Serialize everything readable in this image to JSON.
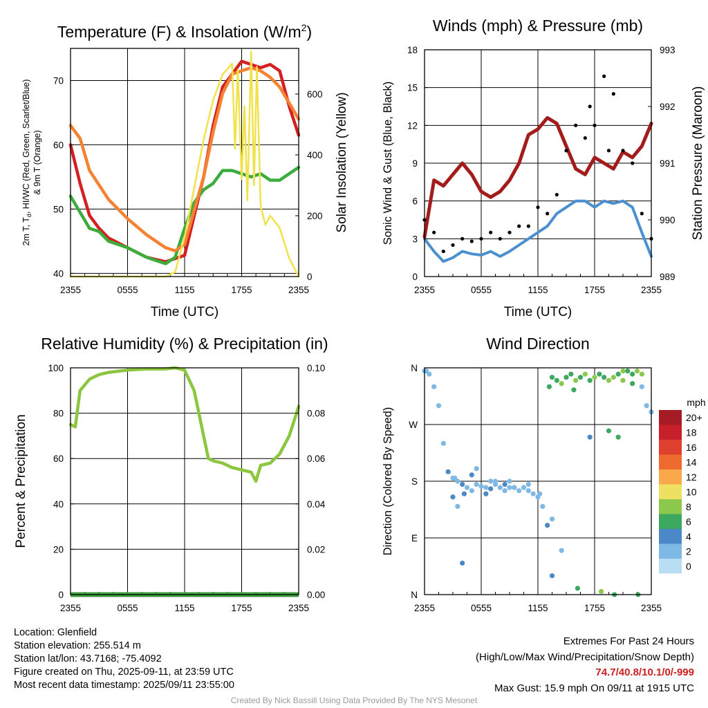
{
  "chart_data": [
    {
      "type": "line",
      "title": "Temperature (F) & Insolation (W/m",
      "title_sup": "2",
      "title_end": ")",
      "xlabel": "Time (UTC)",
      "ylabel_lines": [
        "2m T, T",
        "d",
        ", HI/WC (Red, Green, Scarlet/Blue)",
        "& 9m T (Orange)"
      ],
      "y2label": "Solar Insolation (Yellow)",
      "x_ticks": [
        "2355",
        "0555",
        "1155",
        "1755",
        "2355"
      ],
      "ylim": [
        39.5,
        75
      ],
      "y_ticks": [
        40,
        50,
        60,
        70
      ],
      "y2lim": [
        0,
        750
      ],
      "y2_ticks": [
        0,
        200,
        400,
        600
      ],
      "grid": true,
      "series": [
        {
          "name": "2m T",
          "color": "#d42020",
          "axis": "left",
          "x": [
            0,
            1,
            2,
            3,
            4,
            6,
            8,
            10,
            12,
            14,
            15,
            16,
            18,
            20,
            21,
            22,
            23,
            24
          ],
          "y": [
            60,
            54,
            49,
            47,
            45.5,
            44,
            42.5,
            41.8,
            42.8,
            55,
            63,
            69,
            73,
            72,
            72.5,
            71.5,
            66,
            61.5
          ]
        },
        {
          "name": "Td",
          "color": "#3cac3c",
          "axis": "left",
          "x": [
            0,
            1,
            2,
            3,
            4,
            6,
            8,
            10,
            11,
            12,
            13,
            14,
            15,
            16,
            17,
            18,
            19,
            20,
            21,
            22,
            23,
            24
          ],
          "y": [
            52,
            49.5,
            47,
            46.5,
            45,
            44,
            42.5,
            41.5,
            42.5,
            47,
            51,
            53,
            54,
            56,
            56,
            55.5,
            55,
            55.5,
            54.5,
            54.5,
            55.5,
            56.5
          ]
        },
        {
          "name": "9m T",
          "color": "#f58232",
          "axis": "left",
          "x": [
            0,
            1,
            2,
            4,
            6,
            8,
            10,
            11,
            12,
            14,
            15,
            16,
            17,
            18,
            19,
            20,
            21,
            22,
            23,
            24
          ],
          "y": [
            63,
            61,
            56,
            51.5,
            48.5,
            46,
            44,
            43.5,
            44.5,
            55,
            62,
            68,
            71,
            71.5,
            72,
            71.5,
            70.5,
            69,
            66.5,
            64
          ]
        },
        {
          "name": "Solar Insolation",
          "color": "#f2e24a",
          "axis": "right",
          "x": [
            0,
            10,
            11,
            12,
            13,
            14,
            15,
            16,
            17,
            17.3,
            17.6,
            18,
            18.3,
            18.6,
            19,
            19.3,
            19.6,
            20,
            20.5,
            21,
            22,
            23,
            24
          ],
          "y": [
            0,
            0,
            15,
            130,
            290,
            450,
            580,
            665,
            700,
            420,
            680,
            320,
            560,
            250,
            740,
            300,
            690,
            230,
            170,
            200,
            160,
            60,
            0
          ]
        }
      ]
    },
    {
      "type": "line",
      "title": "Winds (mph) & Pressure (mb)",
      "xlabel": "Time (UTC)",
      "ylabel": "Sonic Wind & Gust (Blue, Black)",
      "y2label": "Station Pressure (Maroon)",
      "x_ticks": [
        "2355",
        "0555",
        "1155",
        "1755",
        "2355"
      ],
      "ylim": [
        0,
        18
      ],
      "y_ticks": [
        0,
        3,
        6,
        9,
        12,
        15,
        18
      ],
      "y2lim": [
        989,
        993
      ],
      "y2_ticks": [
        989,
        990,
        991,
        992,
        993
      ],
      "grid": true,
      "series": [
        {
          "name": "Sonic Wind",
          "color": "#4a90d0",
          "axis": "left",
          "x": [
            0,
            1,
            2,
            3,
            4,
            5,
            6,
            7,
            8,
            9,
            10,
            11,
            12,
            13,
            14,
            15,
            16,
            17,
            18,
            19,
            20,
            21,
            22,
            23,
            24
          ],
          "y": [
            3,
            2,
            1.2,
            1.5,
            2,
            1.8,
            1.7,
            2,
            1.6,
            2,
            2.5,
            3,
            3.5,
            4,
            5,
            5.5,
            6,
            6,
            5.5,
            6,
            5.8,
            6,
            5.5,
            3.5,
            1.6
          ]
        },
        {
          "name": "Gust",
          "color": "#000000",
          "axis": "left",
          "x": [
            0,
            1,
            2,
            3,
            4,
            5,
            6,
            7,
            8,
            9,
            10,
            11,
            12,
            13,
            14,
            15,
            16,
            17,
            17.5,
            18,
            19,
            19.5,
            20,
            21,
            22,
            23,
            24
          ],
          "y": [
            4.5,
            3.5,
            2,
            2.5,
            3,
            2.8,
            3,
            3.5,
            3,
            3.5,
            4,
            4,
            5.5,
            5,
            6.5,
            10,
            12,
            11,
            13.5,
            12,
            15.9,
            10,
            14.5,
            10,
            9,
            5,
            3
          ]
        },
        {
          "name": "Station Pressure",
          "color": "#a31b1b",
          "axis": "right",
          "x": [
            0,
            1,
            2,
            3,
            4,
            5,
            6,
            7,
            8,
            9,
            10,
            11,
            12,
            13,
            14,
            15,
            16,
            17,
            18,
            19,
            20,
            21,
            22,
            23,
            24
          ],
          "y": [
            989.7,
            990.7,
            990.6,
            990.8,
            991.0,
            990.8,
            990.5,
            990.4,
            990.5,
            990.7,
            991.0,
            991.5,
            991.6,
            991.8,
            991.7,
            991.3,
            990.9,
            990.8,
            991.1,
            991.0,
            990.9,
            991.2,
            991.1,
            991.3,
            991.7
          ]
        }
      ]
    },
    {
      "type": "line",
      "title": "Relative Humidity (%) & Precipitation (in)",
      "ylabel": "Percent & Precipitation",
      "x_ticks": [
        "2355",
        "0555",
        "1155",
        "1755",
        "2355"
      ],
      "ylim": [
        0,
        100
      ],
      "y_ticks": [
        0,
        20,
        40,
        60,
        80,
        100
      ],
      "y2lim": [
        0,
        0.1
      ],
      "y2_ticks": [
        "0.00",
        "0.02",
        "0.04",
        "0.06",
        "0.08",
        "0.10"
      ],
      "grid": true,
      "series": [
        {
          "name": "Relative Humidity",
          "color": "#8cc63f",
          "axis": "left",
          "x": [
            0,
            0.5,
            1,
            2,
            3,
            4,
            5,
            6,
            8,
            10,
            11,
            12,
            13,
            14,
            14.5,
            15,
            16,
            17,
            18,
            19,
            19.5,
            20,
            21,
            22,
            23,
            24
          ],
          "y": [
            75,
            74,
            90,
            95,
            97,
            98,
            98.5,
            99,
            99.5,
            99.5,
            100,
            99,
            90,
            70,
            60,
            59,
            58,
            56,
            55,
            54,
            50,
            57,
            58,
            62,
            70,
            83
          ]
        },
        {
          "name": "Precipitation",
          "color": "#3c9e3c",
          "axis": "right",
          "x": [
            0,
            24
          ],
          "y": [
            0,
            0
          ]
        }
      ]
    },
    {
      "type": "scatter",
      "title": "Wind Direction",
      "ylabel": "Direction (Colored By Speed)",
      "x_ticks": [
        "2355",
        "0555",
        "1155",
        "1755",
        "2355"
      ],
      "y_ticks": [
        "N",
        "E",
        "S",
        "W",
        "N"
      ],
      "ylim": [
        0,
        360
      ],
      "legend_title": "mph",
      "legend_labels": [
        "20+",
        "18",
        "16",
        "14",
        "12",
        "10",
        "8",
        "6",
        "4",
        "2",
        "0"
      ],
      "legend_colors": [
        "#a51c24",
        "#c8202a",
        "#e04030",
        "#ee6a2e",
        "#f8a84a",
        "#eee060",
        "#8cc84c",
        "#3ca860",
        "#4a88c8",
        "#7eb8e4",
        "#b8def4"
      ],
      "series": [
        {
          "name": "direction",
          "x": [
            0,
            0.5,
            1,
            1.5,
            2,
            2.5,
            3,
            3.5,
            4,
            4.5,
            5,
            5.5,
            6,
            6.5,
            7,
            7.5,
            8,
            8.5,
            9,
            9.5,
            10,
            10.5,
            11,
            11.5,
            12,
            12.5,
            13,
            13.2,
            13.5,
            14,
            14.5,
            15,
            15.5,
            16,
            16.5,
            17,
            17.5,
            18,
            18.5,
            19,
            19.5,
            20,
            20.5,
            21,
            21.5,
            22,
            22.5,
            23,
            23.5,
            24,
            5,
            7,
            9,
            3,
            4,
            13.5,
            14.5,
            17.5,
            19.5,
            20.5,
            3.2,
            6.5,
            9.5,
            11,
            12.2,
            15.8,
            21,
            22,
            23,
            3.5,
            4.2,
            5.5,
            7.5,
            8.5,
            10.5,
            16.2,
            18.7,
            20.1,
            22.6,
            0.2,
            13.5
          ],
          "dir": [
            355,
            350,
            330,
            300,
            240,
            195,
            185,
            180,
            175,
            170,
            165,
            175,
            172,
            170,
            168,
            175,
            170,
            165,
            170,
            170,
            165,
            170,
            165,
            160,
            155,
            140,
            110,
            330,
            345,
            340,
            335,
            345,
            350,
            340,
            345,
            350,
            340,
            345,
            350,
            345,
            340,
            345,
            350,
            355,
            355,
            350,
            355,
            330,
            300,
            290,
            190,
            180,
            180,
            155,
            50,
            120,
            70,
            250,
            260,
            250,
            185,
            160,
            170,
            175,
            160,
            325,
            340,
            335,
            350,
            140,
            160,
            200,
            180,
            175,
            170,
            10,
            5,
            0,
            0,
            355,
            30
          ],
          "speed": [
            2,
            2,
            2,
            2,
            2,
            3,
            2,
            2,
            3,
            2,
            2,
            2,
            2,
            2,
            3,
            2,
            2,
            2,
            2,
            2,
            2,
            2,
            2,
            2,
            2,
            2,
            3,
            5,
            6,
            5,
            7,
            6,
            5,
            7,
            6,
            8,
            6,
            7,
            5,
            6,
            7,
            8,
            6,
            7,
            5,
            6,
            7,
            2,
            2,
            2,
            3,
            2,
            2,
            3,
            4,
            2,
            2,
            4,
            6,
            5,
            1,
            3,
            2,
            2,
            2,
            6,
            7,
            6,
            8,
            2,
            3,
            2,
            2,
            3,
            2,
            6,
            7,
            5,
            6,
            2,
            4
          ]
        }
      ]
    }
  ],
  "info": {
    "location": "Location: Glenfield",
    "elevation": "Station elevation: 255.514 m",
    "latlon": "Station lat/lon: 43.7168; -75.4092",
    "created": "Figure created on Thu, 2025-09-11, at 23:59 UTC",
    "recent": "Most recent data timestamp: 2025/09/11 23:55:00"
  },
  "extremes": {
    "title": "Extremes For Past 24 Hours",
    "subtitle": "(High/Low/Max Wind/Precipitation/Snow Depth)",
    "values": "74.7/40.8/10.1/0/-999",
    "gust": "Max Gust: 15.9 mph On 09/11 at 1915 UTC"
  },
  "credit": "Created By Nick Bassill Using Data Provided By The NYS Mesonet"
}
